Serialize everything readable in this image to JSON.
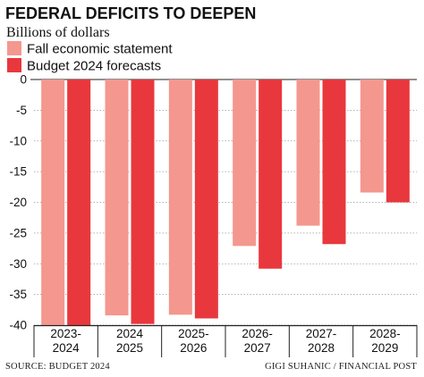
{
  "chart_data": {
    "type": "bar",
    "title": "FEDERAL DEFICITS TO DEEPEN",
    "subtitle": "Billions of dollars",
    "categories": [
      [
        "2023-",
        "2024"
      ],
      [
        "2024",
        "2025"
      ],
      [
        "2025-",
        "2026"
      ],
      [
        "2026-",
        "2027"
      ],
      [
        "2027-",
        "2028"
      ],
      [
        "2028-",
        "2029"
      ]
    ],
    "series": [
      {
        "name": "Fall economic statement",
        "color": "#f4978e",
        "values": [
          -40.0,
          -38.4,
          -38.3,
          -27.1,
          -23.8,
          -18.4
        ]
      },
      {
        "name": "Budget 2024 forecasts",
        "color": "#e8383d",
        "values": [
          -40.0,
          -39.8,
          -38.9,
          -30.8,
          -26.8,
          -20.0
        ]
      }
    ],
    "ylim": [
      -40,
      0
    ],
    "yticks": [
      0,
      -5,
      -10,
      -15,
      -20,
      -25,
      -30,
      -35,
      -40
    ],
    "grid": true,
    "legend_position": "top-left",
    "source": "SOURCE: BUDGET 2024",
    "credit": "GIGI SUHANIC / FINANCIAL POST"
  }
}
